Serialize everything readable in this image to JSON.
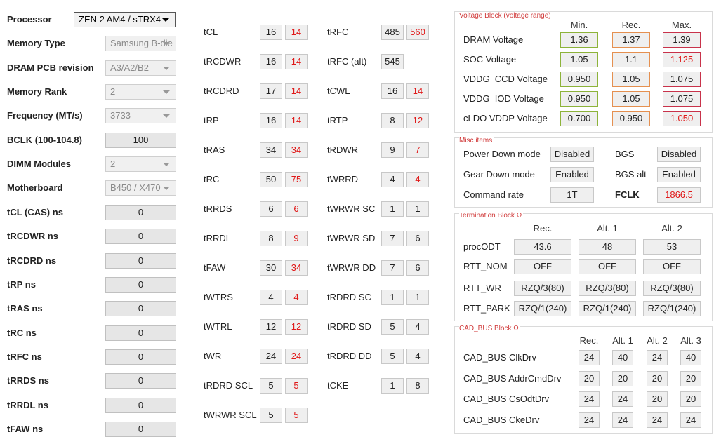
{
  "left": {
    "rows": [
      {
        "label": "Processor",
        "value": "ZEN 2 AM4 / sTRX4",
        "dropdown": true,
        "enabled": true
      },
      {
        "label": "Memory Type",
        "value": "Samsung B-die",
        "dropdown": true,
        "enabled": false
      },
      {
        "label": "DRAM PCB revision",
        "value": "A3/A2/B2",
        "dropdown": true,
        "enabled": false
      },
      {
        "label": "Memory Rank",
        "value": "2",
        "dropdown": true,
        "enabled": false
      },
      {
        "label": "Frequency (MT/s)",
        "value": "3733",
        "dropdown": true,
        "enabled": false
      },
      {
        "label": "BCLK (100-104.8)",
        "value": "100",
        "dropdown": false,
        "enabled": true
      },
      {
        "label": "DIMM Modules",
        "value": "2",
        "dropdown": true,
        "enabled": false
      },
      {
        "label": "Motherboard",
        "value": "B450 / X470",
        "dropdown": true,
        "enabled": false
      },
      {
        "label": "tCL (CAS) ns",
        "value": "0",
        "dropdown": false,
        "enabled": true
      },
      {
        "label": "tRCDWR ns",
        "value": "0",
        "dropdown": false,
        "enabled": true
      },
      {
        "label": "tRCDRD ns",
        "value": "0",
        "dropdown": false,
        "enabled": true
      },
      {
        "label": "tRP ns",
        "value": "0",
        "dropdown": false,
        "enabled": true
      },
      {
        "label": "tRAS ns",
        "value": "0",
        "dropdown": false,
        "enabled": true
      },
      {
        "label": "tRC ns",
        "value": "0",
        "dropdown": false,
        "enabled": true
      },
      {
        "label": "tRFC ns",
        "value": "0",
        "dropdown": false,
        "enabled": true
      },
      {
        "label": "tRRDS ns",
        "value": "0",
        "dropdown": false,
        "enabled": true
      },
      {
        "label": "tRRDL ns",
        "value": "0",
        "dropdown": false,
        "enabled": true
      },
      {
        "label": "tFAW ns",
        "value": "0",
        "dropdown": false,
        "enabled": true
      }
    ]
  },
  "timings": [
    {
      "rows": [
        {
          "label": "tCL",
          "values": [
            "16",
            "14"
          ],
          "alert": true
        },
        {
          "label": "tRCDWR",
          "values": [
            "16",
            "14"
          ],
          "alert": true
        },
        {
          "label": "tRCDRD",
          "values": [
            "17",
            "14"
          ],
          "alert": true
        },
        {
          "label": "tRP",
          "values": [
            "16",
            "14"
          ],
          "alert": true
        },
        {
          "label": "tRAS",
          "values": [
            "34",
            "34"
          ],
          "alert": true
        },
        {
          "label": "tRC",
          "values": [
            "50",
            "75"
          ],
          "alert": true
        },
        {
          "label": "tRRDS",
          "values": [
            "6",
            "6"
          ],
          "alert": true
        },
        {
          "label": "tRRDL",
          "values": [
            "8",
            "9"
          ],
          "alert": true
        },
        {
          "label": "tFAW",
          "values": [
            "30",
            "34"
          ],
          "alert": true
        },
        {
          "label": "tWTRS",
          "values": [
            "4",
            "4"
          ],
          "alert": true
        },
        {
          "label": "tWTRL",
          "values": [
            "12",
            "12"
          ],
          "alert": true
        },
        {
          "label": "tWR",
          "values": [
            "24",
            "24"
          ],
          "alert": true
        },
        {
          "label": "tRDRD SCL",
          "values": [
            "5",
            "5"
          ],
          "alert": true
        },
        {
          "label": "tWRWR SCL",
          "values": [
            "5",
            "5"
          ],
          "alert": true
        }
      ]
    },
    {
      "rows": [
        {
          "label": "tRFC",
          "values": [
            "485",
            "560"
          ],
          "alert": true
        },
        {
          "label": "tRFC (alt)",
          "values": [
            "545"
          ],
          "alert": false
        },
        {
          "label": "tCWL",
          "values": [
            "16",
            "14"
          ],
          "alert": true
        },
        {
          "label": "tRTP",
          "values": [
            "8",
            "12"
          ],
          "alert": true
        },
        {
          "label": "tRDWR",
          "values": [
            "9",
            "7"
          ],
          "alert": true
        },
        {
          "label": "tWRRD",
          "values": [
            "4",
            "4"
          ],
          "alert": true
        },
        {
          "label": "tWRWR SC",
          "values": [
            "1",
            "1"
          ],
          "alert": false
        },
        {
          "label": "tWRWR SD",
          "values": [
            "7",
            "6"
          ],
          "alert": false
        },
        {
          "label": "tWRWR DD",
          "values": [
            "7",
            "6"
          ],
          "alert": false
        },
        {
          "label": "tRDRD SC",
          "values": [
            "1",
            "1"
          ],
          "alert": false
        },
        {
          "label": "tRDRD SD",
          "values": [
            "5",
            "4"
          ],
          "alert": false
        },
        {
          "label": "tRDRD DD",
          "values": [
            "5",
            "4"
          ],
          "alert": false
        },
        {
          "label": "tCKE",
          "values": [
            "1",
            "8"
          ],
          "alert": false
        }
      ]
    }
  ],
  "voltage": {
    "title": "Voltage Block (voltage range)",
    "headers": [
      "Min.",
      "Rec.",
      "Max."
    ],
    "rows": [
      {
        "label": "DRAM Voltage",
        "values": [
          "1.36",
          "1.37",
          "1.39"
        ],
        "alert": false
      },
      {
        "label": "SOC Voltage",
        "values": [
          "1.05",
          "1.1",
          "1.125"
        ],
        "alert": true
      },
      {
        "label": "VDDG  CCD Voltage",
        "values": [
          "0.950",
          "1.05",
          "1.075"
        ],
        "alert": false
      },
      {
        "label": "VDDG  IOD Voltage",
        "values": [
          "0.950",
          "1.05",
          "1.075"
        ],
        "alert": false
      },
      {
        "label": "cLDO VDDP Voltage",
        "values": [
          "0.700",
          "0.950",
          "1.050"
        ],
        "alert": true
      }
    ]
  },
  "misc": {
    "title": "Misc items",
    "rows": [
      [
        {
          "label": "Power Down mode",
          "value": "Disabled"
        },
        {
          "label": "BGS",
          "value": "Disabled"
        }
      ],
      [
        {
          "label": "Gear Down mode",
          "value": "Enabled"
        },
        {
          "label": "BGS alt",
          "value": "Enabled"
        }
      ],
      [
        {
          "label": "Command rate",
          "value": "1T"
        },
        {
          "label": "FCLK",
          "value": "1866.5",
          "bold": true,
          "alert": true
        }
      ]
    ]
  },
  "termination": {
    "title": "Termination Block Ω",
    "headers": [
      "Rec.",
      "Alt. 1",
      "Alt. 2"
    ],
    "rows": [
      {
        "label": "procODT",
        "values": [
          "43.6",
          "48",
          "53"
        ]
      },
      {
        "label": "RTT_NOM",
        "values": [
          "OFF",
          "OFF",
          "OFF"
        ]
      },
      {
        "label": "RTT_WR",
        "values": [
          "RZQ/3(80)",
          "RZQ/3(80)",
          "RZQ/3(80)"
        ]
      },
      {
        "label": "RTT_PARK",
        "values": [
          "RZQ/1(240)",
          "RZQ/1(240)",
          "RZQ/1(240)"
        ]
      }
    ]
  },
  "cadbus": {
    "title": "CAD_BUS Block Ω",
    "headers": [
      "Rec.",
      "Alt. 1",
      "Alt. 2",
      "Alt. 3"
    ],
    "rows": [
      {
        "label": "CAD_BUS ClkDrv",
        "values": [
          "24",
          "40",
          "24",
          "40"
        ]
      },
      {
        "label": "CAD_BUS AddrCmdDrv",
        "values": [
          "20",
          "20",
          "20",
          "20"
        ]
      },
      {
        "label": "CAD_BUS CsOdtDrv",
        "values": [
          "24",
          "24",
          "20",
          "20"
        ]
      },
      {
        "label": "CAD_BUS CkeDrv",
        "values": [
          "24",
          "24",
          "24",
          "24"
        ]
      }
    ]
  }
}
